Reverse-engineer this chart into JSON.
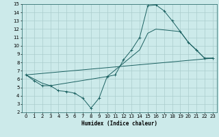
{
  "xlabel": "Humidex (Indice chaleur)",
  "bg_color": "#cceaea",
  "grid_color": "#aacccc",
  "line_color": "#1a6060",
  "xlim": [
    -0.5,
    23.5
  ],
  "ylim": [
    2,
    15
  ],
  "xticks": [
    0,
    1,
    2,
    3,
    4,
    5,
    6,
    7,
    8,
    9,
    10,
    11,
    12,
    13,
    14,
    15,
    16,
    17,
    18,
    19,
    20,
    21,
    22,
    23
  ],
  "yticks": [
    2,
    3,
    4,
    5,
    6,
    7,
    8,
    9,
    10,
    11,
    12,
    13,
    14,
    15
  ],
  "line1_x": [
    0,
    1,
    2,
    3,
    4,
    5,
    6,
    7,
    8,
    9,
    10,
    11,
    12,
    13,
    14,
    15,
    16,
    17,
    18,
    19,
    20,
    21,
    22,
    23
  ],
  "line1_y": [
    6.5,
    5.8,
    5.2,
    5.2,
    4.6,
    4.5,
    4.3,
    3.7,
    2.5,
    3.7,
    6.3,
    6.5,
    8.3,
    9.5,
    11.0,
    14.8,
    14.9,
    14.2,
    13.0,
    11.7,
    10.4,
    9.5,
    8.5,
    8.5
  ],
  "line2_x": [
    0,
    2,
    3,
    10,
    14,
    15,
    16,
    19,
    20,
    22,
    23
  ],
  "line2_y": [
    6.5,
    5.5,
    5.2,
    6.3,
    9.5,
    11.5,
    12.0,
    11.7,
    10.4,
    8.5,
    8.5
  ],
  "line3_x": [
    0,
    23
  ],
  "line3_y": [
    6.5,
    8.5
  ],
  "marker": "+"
}
